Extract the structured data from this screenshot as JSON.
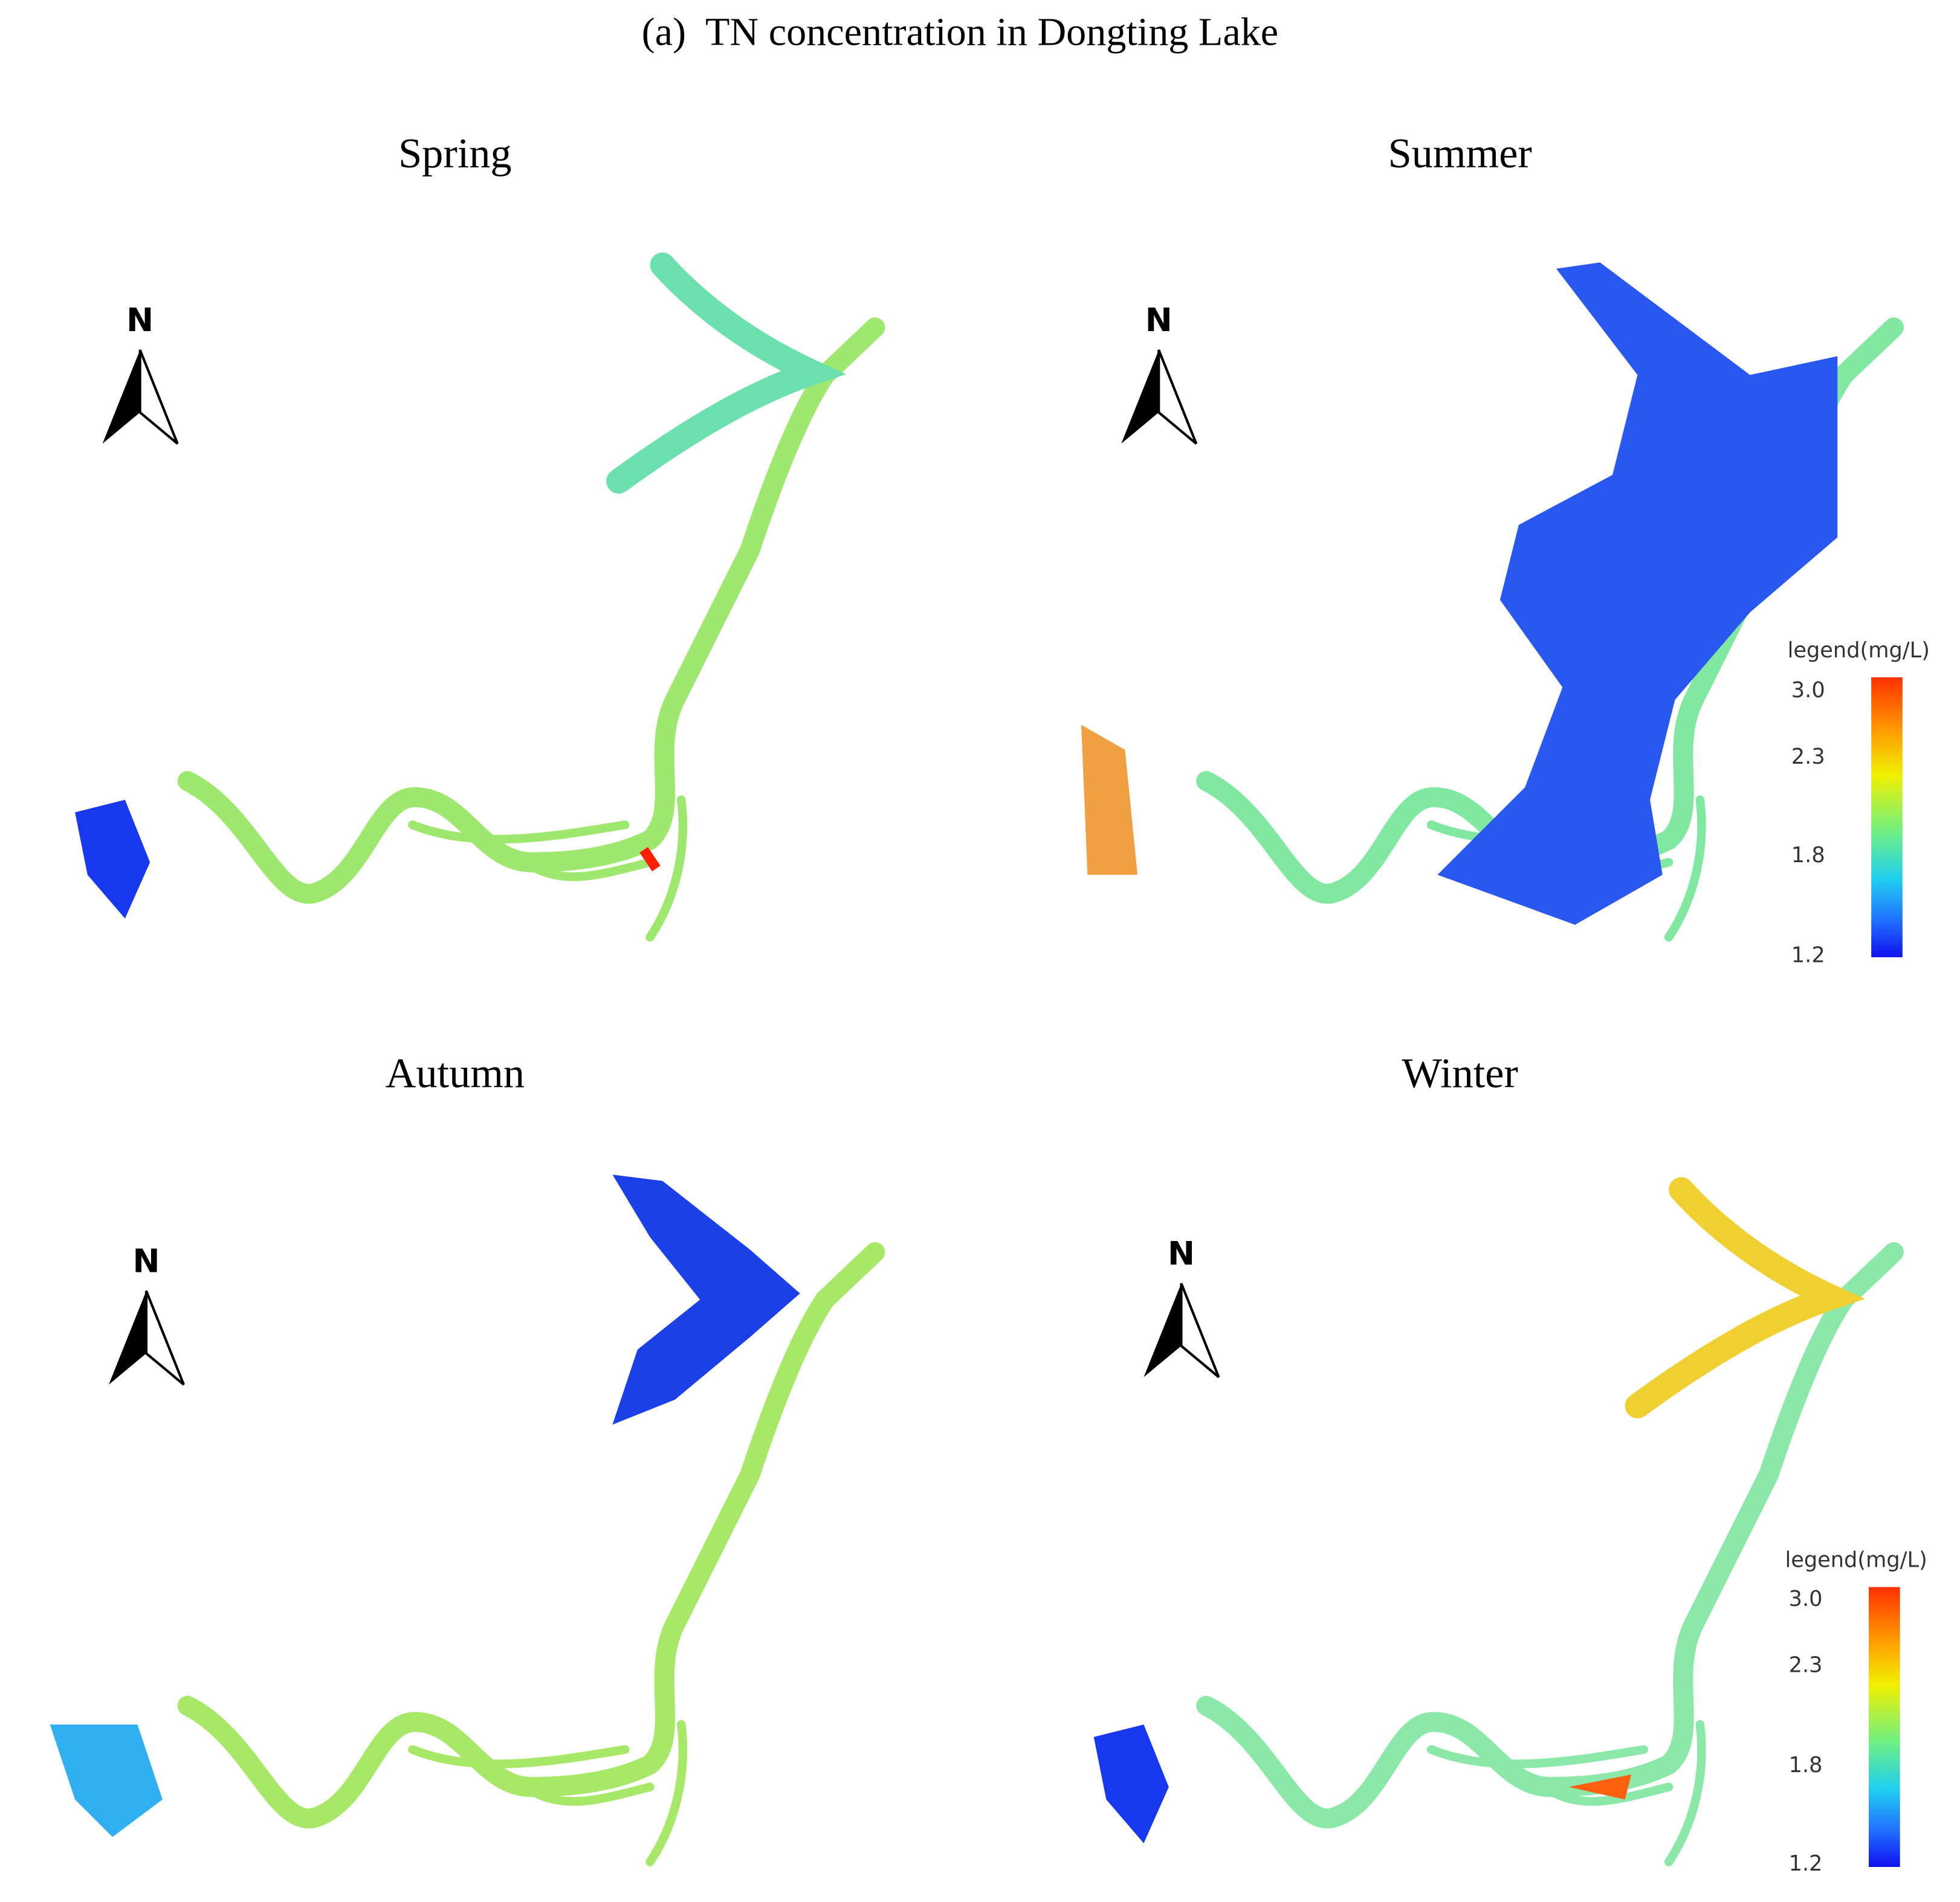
{
  "title": "(a)  TN concentration in Dongting Lake",
  "panels": [
    {
      "title": "Spring",
      "north": "N"
    },
    {
      "title": "Summer",
      "north": "N"
    },
    {
      "title": "Autumn",
      "north": "N"
    },
    {
      "title": "Winter",
      "north": "N"
    }
  ],
  "legends": [
    {
      "title": "legend(mg/L)",
      "labels": [
        "3.0",
        "2.3",
        "1.8",
        "1.2"
      ]
    },
    {
      "title": "legend(mg/L)",
      "labels": [
        "3.0",
        "2.3",
        "1.8",
        "1.2"
      ]
    }
  ]
}
